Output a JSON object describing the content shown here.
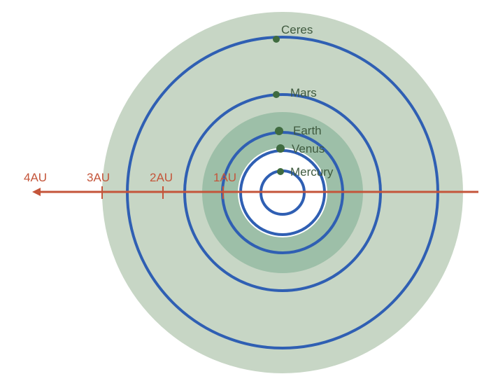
{
  "diagram": {
    "colors": {
      "background": "#ffffff",
      "outer_region": "#c7d6c5",
      "habitable_zone": "#9dbfa8",
      "inner_clear_zone": "#ffffff",
      "orbit": "#2f5fb3",
      "planet": "#3f6b3f",
      "axis": "#c4553a",
      "label": "#3f5a3f"
    },
    "planets": [
      {
        "name": "Mercury"
      },
      {
        "name": "Venus"
      },
      {
        "name": "Earth"
      },
      {
        "name": "Mars"
      },
      {
        "name": "Ceres"
      }
    ],
    "axis_labels": [
      "1AU",
      "2AU",
      "3AU",
      "4AU"
    ]
  }
}
